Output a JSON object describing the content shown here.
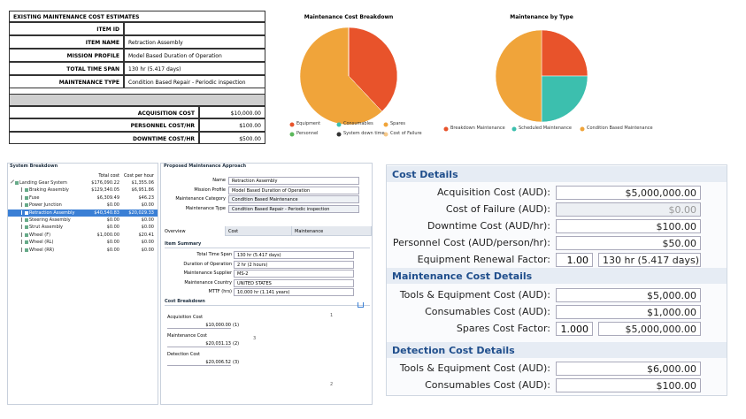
{
  "estimates": {
    "title": "EXISTING MAINTENANCE COST ESTIMATES",
    "rows": [
      {
        "label": "ITEM ID"
      },
      {
        "label": "ITEM NAME",
        "value": "Retraction Assembly"
      },
      {
        "label": "MISSION PROFILE",
        "value": "Model Based Duration of Operation"
      },
      {
        "label": "TOTAL TIME SPAN",
        "value": "130 hr (5.417 days)"
      },
      {
        "label": "MAINTENANCE TYPE",
        "value": "Condition Based Repair - Periodic inspection"
      }
    ],
    "cost_rows": [
      {
        "label": "ACQUISITION COST",
        "value": "$10,000.00"
      },
      {
        "label": "PERSONNEL COST/HR",
        "value": "$100.00"
      },
      {
        "label": "DOWNTIME COST/HR",
        "value": "$500.00"
      }
    ]
  },
  "pie_breakdown": {
    "type": "pie",
    "title": "Maintenance Cost Breakdown",
    "series": [
      {
        "name": "Equipment",
        "color": "#e8532b",
        "value": 38
      },
      {
        "name": "Consumables",
        "color": "#3cbfae",
        "value": 0
      },
      {
        "name": "Spares",
        "color": "#f0a43a",
        "value": 62
      },
      {
        "name": "Personnel",
        "color": "#5cb85c",
        "value": 0
      },
      {
        "name": "System down time",
        "color": "#333333",
        "value": 0
      },
      {
        "name": "Cost of Failure",
        "color": "#f6c98a",
        "value": 0
      }
    ]
  },
  "pie_type": {
    "type": "pie",
    "title": "Maintenance by Type",
    "series": [
      {
        "name": "Breakdown Maintenance",
        "color": "#e8532b",
        "value": 25
      },
      {
        "name": "Scheduled Maintenance",
        "color": "#3cbfae",
        "value": 25
      },
      {
        "name": "Condition Based Maintenance",
        "color": "#f0a43a",
        "value": 50
      }
    ]
  },
  "system_breakdown": {
    "title": "System Breakdown",
    "columns": [
      "Total cost",
      "Cost per hour"
    ],
    "rows": [
      {
        "name": "Landing Gear System",
        "total": "$176,090.22",
        "per_hour": "$1,355.06"
      },
      {
        "name": "Braking Assembly",
        "total": "$129,340.05",
        "per_hour": "$6,951.86"
      },
      {
        "name": "Fuse",
        "total": "$6,309.49",
        "per_hour": "$46.23"
      },
      {
        "name": "Power Junction",
        "total": "$0.00",
        "per_hour": "$0.00"
      },
      {
        "name": "Retraction Assembly",
        "total": "$40,540.83",
        "per_hour": "$20,029.33",
        "selected": true
      },
      {
        "name": "Steering Assembly",
        "total": "$0.00",
        "per_hour": "$0.00"
      },
      {
        "name": "Strut Assembly",
        "total": "$0.00",
        "per_hour": "$0.00"
      },
      {
        "name": "Wheel (F)",
        "total": "$1,000.00",
        "per_hour": "$20.41"
      },
      {
        "name": "Wheel (RL)",
        "total": "$0.00",
        "per_hour": "$0.00"
      },
      {
        "name": "Wheel (RR)",
        "total": "$0.00",
        "per_hour": "$0.00"
      }
    ]
  },
  "approach": {
    "title": "Proposed Maintenance Approach",
    "fields": [
      {
        "label": "Name",
        "value": "Retraction Assembly"
      },
      {
        "label": "Mission Profile",
        "value": "Model Based Duration of Operation"
      },
      {
        "label": "Maintenance Category",
        "value": "Condition Based Maintenance"
      },
      {
        "label": "Maintenance Type",
        "value": "Condition Based Repair - Periodic inspection"
      }
    ],
    "tabs": [
      "Overview",
      "Cost",
      "Maintenance"
    ],
    "summary": {
      "title": "Item Summary",
      "fields": [
        {
          "label": "Total Time Span",
          "value": "130 hr (5.417 days)"
        },
        {
          "label": "Duration of Operation",
          "value": "2 hr (2 hours)"
        },
        {
          "label": "Maintenance Supplier",
          "value": "MS-2"
        },
        {
          "label": "Maintenance Country",
          "value": "UNITED STATES"
        },
        {
          "label": "MTTF (hrs)",
          "value": "10,000 hr (1.141 years)"
        }
      ]
    },
    "cost_breakdown": {
      "title": "Cost Breakdown",
      "items": [
        {
          "label": "Acquisition Cost",
          "value": 10000,
          "value_label": "$10,000.00",
          "index_label": "(1)",
          "pie_label": "1",
          "color": "#e8532b"
        },
        {
          "label": "Maintenance Cost",
          "value": 20031.13,
          "value_label": "$20,031.13",
          "index_label": "(2)",
          "pie_label": "2",
          "color": "#3cbfae"
        },
        {
          "label": "Detection Cost",
          "value": 20006.52,
          "value_label": "$20,006.52",
          "index_label": "(3)",
          "pie_label": "3",
          "color": "#f0a43a"
        }
      ]
    }
  },
  "cost_details": {
    "sections": [
      {
        "title": "Cost Details",
        "rows": [
          {
            "label": "Acquisition Cost (AUD):",
            "value": "$5,000,000.00"
          },
          {
            "label": "Cost of Failure (AUD):",
            "value": "$0.00",
            "disabled": true
          },
          {
            "label": "Downtime Cost (AUD/hr):",
            "value": "$100.00"
          },
          {
            "label": "Personnel Cost (AUD/person/hr):",
            "value": "$50.00"
          },
          {
            "label": "Equipment Renewal Factor:",
            "factor": "1.00",
            "value": "130 hr (5.417 days)"
          }
        ]
      },
      {
        "title": "Maintenance Cost Details",
        "rows": [
          {
            "label": "Tools & Equipment Cost (AUD):",
            "value": "$5,000.00"
          },
          {
            "label": "Consumables Cost (AUD):",
            "value": "$1,000.00"
          },
          {
            "label": "Spares Cost Factor:",
            "factor": "1.000",
            "value": "$5,000,000.00"
          }
        ]
      },
      {
        "title": "Detection Cost Details",
        "rows": [
          {
            "label": "Tools & Equipment Cost (AUD):",
            "value": "$6,000.00"
          },
          {
            "label": "Consumables Cost (AUD):",
            "value": "$100.00"
          }
        ]
      }
    ]
  }
}
